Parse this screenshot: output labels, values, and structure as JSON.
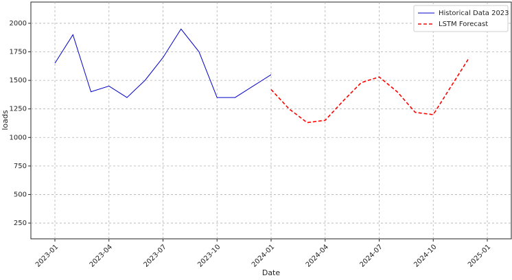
{
  "chart_data": {
    "type": "line",
    "xlabel": "Date",
    "ylabel": "loads",
    "x": [
      "2023-01",
      "2023-02",
      "2023-03",
      "2023-04",
      "2023-05",
      "2023-06",
      "2023-07",
      "2023-08",
      "2023-09",
      "2023-10",
      "2023-11",
      "2023-12",
      "2024-01",
      "2024-02",
      "2024-03",
      "2024-04",
      "2024-05",
      "2024-06",
      "2024-07",
      "2024-08",
      "2024-09",
      "2024-10",
      "2024-11",
      "2024-12"
    ],
    "series": [
      {
        "name": "Historical Data 2023",
        "color": "#0000cc",
        "style": "solid",
        "values": [
          1650,
          1900,
          1400,
          1450,
          1350,
          1500,
          1700,
          1950,
          1750,
          1350,
          1350,
          1450,
          1550,
          null,
          null,
          null,
          null,
          null,
          null,
          null,
          null,
          null,
          null,
          null
        ]
      },
      {
        "name": "LSTM Forecast",
        "color": "#ff0000",
        "style": "dashed",
        "values": [
          null,
          null,
          null,
          null,
          null,
          null,
          null,
          null,
          null,
          null,
          null,
          null,
          1420,
          1250,
          1130,
          1150,
          1320,
          1480,
          1530,
          1400,
          1220,
          1200,
          1450,
          1700
        ]
      }
    ],
    "xlim": [
      "2023-01",
      "2025-01"
    ],
    "xticks": [
      "2023-01",
      "2023-04",
      "2023-07",
      "2023-10",
      "2024-01",
      "2024-04",
      "2024-07",
      "2024-10",
      "2025-01"
    ],
    "ylim": [
      112,
      2186
    ],
    "yticks": [
      250,
      500,
      750,
      1000,
      1250,
      1500,
      1750,
      2000
    ],
    "grid": true,
    "legend": "upper right"
  }
}
